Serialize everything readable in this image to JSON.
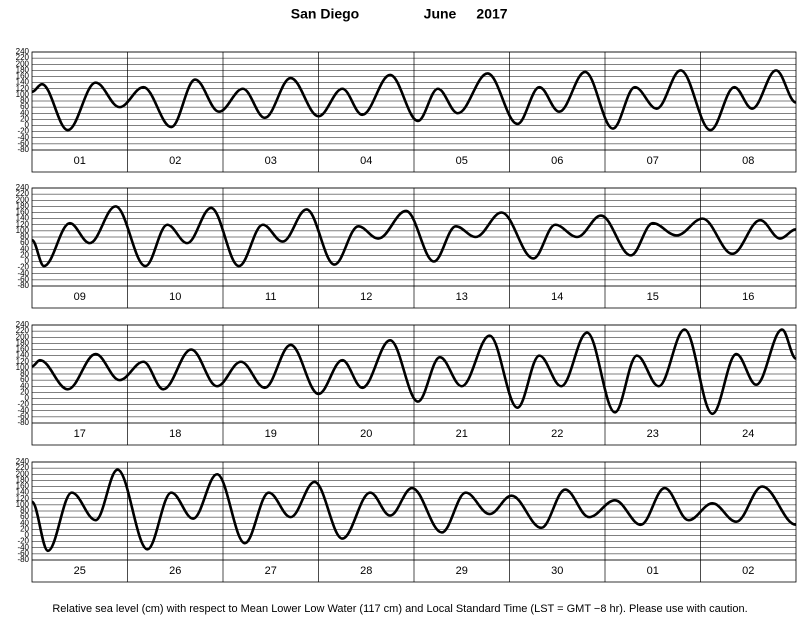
{
  "title": "San Diego",
  "month": "June",
  "year": "2017",
  "footnote": "Relative sea level (cm) with respect to Mean Lower Low Water (117 cm) and Local Standard Time (LST = GMT −8 hr). Please use with caution.",
  "chart_data": [
    {
      "type": "line",
      "categories": [
        "01",
        "02",
        "03",
        "04",
        "05",
        "06",
        "07",
        "08"
      ],
      "x": [
        0,
        2.5,
        9,
        16,
        22,
        28,
        35,
        41,
        47,
        53,
        58.5,
        65,
        72,
        78,
        83,
        90,
        97,
        102,
        107,
        114.5,
        122,
        127.5,
        132.5,
        139,
        146,
        151.5,
        157,
        163,
        170.5,
        176.5,
        181,
        187,
        192
      ],
      "values": [
        110,
        135,
        -15,
        140,
        60,
        125,
        -5,
        150,
        45,
        120,
        25,
        155,
        30,
        120,
        35,
        165,
        15,
        120,
        40,
        170,
        5,
        125,
        45,
        175,
        -10,
        125,
        55,
        180,
        -15,
        125,
        55,
        180,
        75
      ],
      "xlim": [
        0,
        192
      ],
      "ylim": [
        -80,
        240
      ],
      "yticks": [
        -80,
        -60,
        -40,
        -20,
        0,
        20,
        40,
        60,
        80,
        100,
        120,
        140,
        160,
        180,
        200,
        220,
        240
      ],
      "color": "#000000"
    },
    {
      "type": "line",
      "categories": [
        "09",
        "10",
        "11",
        "12",
        "13",
        "14",
        "15",
        "16"
      ],
      "x": [
        0,
        3,
        9.5,
        14.5,
        21,
        28.5,
        34,
        39,
        45,
        52,
        58,
        63,
        69,
        76,
        82,
        87,
        94,
        101,
        106.5,
        111.5,
        118,
        126,
        131.5,
        137,
        143,
        150.5,
        156,
        162,
        168.5,
        176,
        183,
        188,
        192
      ],
      "values": [
        70,
        -15,
        125,
        60,
        180,
        -15,
        120,
        60,
        175,
        -15,
        120,
        65,
        170,
        -10,
        115,
        75,
        165,
        0,
        115,
        80,
        160,
        10,
        120,
        80,
        150,
        20,
        125,
        85,
        140,
        25,
        135,
        75,
        105
      ],
      "xlim": [
        0,
        192
      ],
      "ylim": [
        -80,
        240
      ],
      "yticks": [
        -80,
        -60,
        -40,
        -20,
        0,
        20,
        40,
        60,
        80,
        100,
        120,
        140,
        160,
        180,
        200,
        220,
        240
      ],
      "color": "#000000"
    },
    {
      "type": "line",
      "categories": [
        "17",
        "18",
        "19",
        "20",
        "21",
        "22",
        "23",
        "24"
      ],
      "x": [
        0,
        2,
        9,
        16,
        22,
        28,
        33,
        40,
        46.5,
        52.5,
        58.5,
        65,
        72,
        78,
        83,
        90,
        97,
        102.5,
        108,
        115,
        122,
        127.5,
        133,
        139.5,
        146.5,
        152,
        157.5,
        164,
        171,
        177,
        182,
        188.5,
        192
      ],
      "values": [
        105,
        125,
        30,
        145,
        60,
        120,
        30,
        160,
        40,
        120,
        35,
        175,
        15,
        125,
        35,
        190,
        -10,
        135,
        40,
        205,
        -30,
        140,
        40,
        215,
        -45,
        140,
        40,
        225,
        -50,
        145,
        45,
        225,
        130
      ],
      "xlim": [
        0,
        192
      ],
      "ylim": [
        -80,
        240
      ],
      "yticks": [
        -80,
        -60,
        -40,
        -20,
        0,
        20,
        40,
        60,
        80,
        100,
        120,
        140,
        160,
        180,
        200,
        220,
        240
      ],
      "color": "#000000"
    },
    {
      "type": "line",
      "categories": [
        "25",
        "26",
        "27",
        "28",
        "29",
        "30",
        "01",
        "02"
      ],
      "x": [
        0,
        4,
        10,
        16,
        21.5,
        29,
        35,
        40.5,
        46.5,
        53.5,
        59.5,
        65,
        71,
        78,
        85,
        90,
        95.5,
        103,
        109,
        115,
        120.5,
        128,
        134,
        140,
        146.5,
        153,
        159,
        165,
        171,
        177,
        183.5,
        192
      ],
      "values": [
        110,
        -50,
        140,
        50,
        215,
        -45,
        140,
        55,
        200,
        -25,
        140,
        60,
        175,
        -10,
        140,
        65,
        155,
        10,
        140,
        70,
        130,
        25,
        150,
        60,
        115,
        35,
        155,
        50,
        105,
        45,
        160,
        35
      ],
      "xlim": [
        0,
        192
      ],
      "ylim": [
        -80,
        240
      ],
      "yticks": [
        -80,
        -60,
        -40,
        -20,
        0,
        20,
        40,
        60,
        80,
        100,
        120,
        140,
        160,
        180,
        200,
        220,
        240
      ],
      "color": "#000000"
    }
  ]
}
